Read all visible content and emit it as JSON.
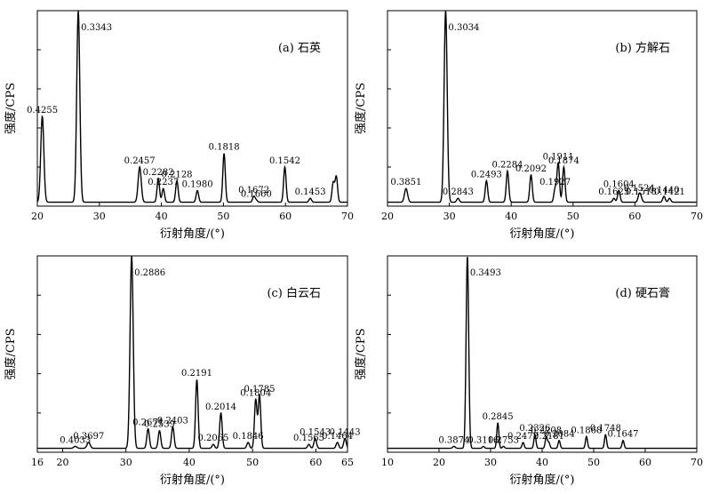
{
  "chart_data": [
    {
      "type": "line",
      "panel_label": "(a) 石英",
      "xlabel": "衍射角度/(°)",
      "ylabel": "强度/CPS",
      "xlim": [
        20,
        70
      ],
      "xticks": [
        20,
        30,
        40,
        50,
        60,
        70
      ],
      "ylim": [
        0,
        100
      ],
      "baseline": 2,
      "peaks": [
        {
          "x": 20.8,
          "y": 46,
          "w": 0.25,
          "label": "0.4255"
        },
        {
          "x": 26.6,
          "y": 100,
          "w": 0.25,
          "label": "0.3343"
        },
        {
          "x": 36.5,
          "y": 20,
          "w": 0.25,
          "label": "0.2457"
        },
        {
          "x": 39.5,
          "y": 14,
          "w": 0.2,
          "label": "0.2282"
        },
        {
          "x": 40.3,
          "y": 9,
          "w": 0.2,
          "label": "0.2237"
        },
        {
          "x": 42.5,
          "y": 13,
          "w": 0.2,
          "label": "0.2128"
        },
        {
          "x": 45.8,
          "y": 8,
          "w": 0.2,
          "label": "0.1980"
        },
        {
          "x": 50.1,
          "y": 27,
          "w": 0.2,
          "label": "0.1818"
        },
        {
          "x": 54.9,
          "y": 5,
          "w": 0.2,
          "label": "0.1672"
        },
        {
          "x": 55.3,
          "y": 3,
          "w": 0.2,
          "label": "0.1660"
        },
        {
          "x": 59.9,
          "y": 20,
          "w": 0.2,
          "label": "0.1542"
        },
        {
          "x": 64.0,
          "y": 4,
          "w": 0.2,
          "label": "0.1453"
        },
        {
          "x": 67.7,
          "y": 12,
          "w": 0.2,
          "label": ""
        },
        {
          "x": 68.2,
          "y": 15,
          "w": 0.2,
          "label": ""
        }
      ]
    },
    {
      "type": "line",
      "panel_label": "(b) 方解石",
      "xlabel": "衍射角度/(°)",
      "ylabel": "强度/CPS",
      "xlim": [
        20,
        70
      ],
      "xticks": [
        20,
        30,
        40,
        50,
        60,
        70
      ],
      "ylim": [
        0,
        100
      ],
      "baseline": 2,
      "peaks": [
        {
          "x": 23.0,
          "y": 9,
          "w": 0.25,
          "label": "0.3851"
        },
        {
          "x": 29.4,
          "y": 100,
          "w": 0.25,
          "label": "0.3034"
        },
        {
          "x": 31.4,
          "y": 4,
          "w": 0.2,
          "label": "0.2843"
        },
        {
          "x": 36.0,
          "y": 13,
          "w": 0.2,
          "label": "0.2493"
        },
        {
          "x": 39.4,
          "y": 18,
          "w": 0.2,
          "label": "0.2284"
        },
        {
          "x": 43.2,
          "y": 16,
          "w": 0.2,
          "label": "0.2092"
        },
        {
          "x": 47.1,
          "y": 9,
          "w": 0.2,
          "label": "0.1927"
        },
        {
          "x": 47.6,
          "y": 22,
          "w": 0.2,
          "label": "0.1911"
        },
        {
          "x": 48.5,
          "y": 20,
          "w": 0.2,
          "label": "0.1874"
        },
        {
          "x": 56.6,
          "y": 4,
          "w": 0.2,
          "label": "0.1625"
        },
        {
          "x": 57.4,
          "y": 8,
          "w": 0.2,
          "label": "0.1604"
        },
        {
          "x": 60.7,
          "y": 6,
          "w": 0.2,
          "label": "0.1524"
        },
        {
          "x": 61.0,
          "y": 4,
          "w": 0.2,
          "label": "0.1518"
        },
        {
          "x": 64.7,
          "y": 5,
          "w": 0.2,
          "label": "0.1440"
        },
        {
          "x": 65.6,
          "y": 4,
          "w": 0.2,
          "label": "0.1421"
        }
      ]
    },
    {
      "type": "line",
      "panel_label": "(c) 白云石",
      "xlabel": "衍射角度/(°)",
      "ylabel": "强度/CPS",
      "xlim": [
        16,
        65
      ],
      "xticks": [
        16,
        20,
        30,
        40,
        50,
        60,
        65
      ],
      "ylim": [
        0,
        100
      ],
      "baseline": 2,
      "peaks": [
        {
          "x": 22.0,
          "y": 3,
          "w": 0.25,
          "label": "0.4033"
        },
        {
          "x": 24.1,
          "y": 5,
          "w": 0.25,
          "label": "0.3697"
        },
        {
          "x": 30.9,
          "y": 100,
          "w": 0.25,
          "label": "0.2886"
        },
        {
          "x": 33.5,
          "y": 12,
          "w": 0.2,
          "label": "0.2671"
        },
        {
          "x": 35.3,
          "y": 11,
          "w": 0.2,
          "label": "0.2539"
        },
        {
          "x": 37.4,
          "y": 13,
          "w": 0.2,
          "label": "0.2403"
        },
        {
          "x": 41.2,
          "y": 37,
          "w": 0.2,
          "label": "0.2191"
        },
        {
          "x": 43.8,
          "y": 4,
          "w": 0.2,
          "label": "0.2065"
        },
        {
          "x": 45.0,
          "y": 20,
          "w": 0.2,
          "label": "0.2014"
        },
        {
          "x": 49.3,
          "y": 5,
          "w": 0.2,
          "label": "0.1846"
        },
        {
          "x": 50.5,
          "y": 27,
          "w": 0.2,
          "label": "0.1804"
        },
        {
          "x": 51.1,
          "y": 29,
          "w": 0.2,
          "label": "0.1785"
        },
        {
          "x": 58.9,
          "y": 4,
          "w": 0.2,
          "label": "0.1565"
        },
        {
          "x": 59.9,
          "y": 7,
          "w": 0.2,
          "label": "0.1543"
        },
        {
          "x": 63.4,
          "y": 5,
          "w": 0.2,
          "label": "0.1464"
        },
        {
          "x": 64.6,
          "y": 7,
          "w": 0.2,
          "label": "0.1443"
        }
      ]
    },
    {
      "type": "line",
      "panel_label": "(d) 硬石膏",
      "xlabel": "衍射角度/(°)",
      "ylabel": "强度/CPS",
      "xlim": [
        10,
        70
      ],
      "xticks": [
        10,
        20,
        30,
        40,
        50,
        60,
        70
      ],
      "ylim": [
        0,
        100
      ],
      "baseline": 2,
      "peaks": [
        {
          "x": 22.9,
          "y": 3,
          "w": 0.25,
          "label": "0.3874"
        },
        {
          "x": 25.5,
          "y": 100,
          "w": 0.25,
          "label": "0.3493"
        },
        {
          "x": 28.6,
          "y": 3,
          "w": 0.2,
          "label": "0.3116"
        },
        {
          "x": 31.4,
          "y": 15,
          "w": 0.2,
          "label": "0.2845"
        },
        {
          "x": 32.5,
          "y": 3,
          "w": 0.2,
          "label": "0.2753"
        },
        {
          "x": 36.3,
          "y": 5,
          "w": 0.2,
          "label": "0.2472"
        },
        {
          "x": 38.6,
          "y": 9,
          "w": 0.2,
          "label": "0.2326"
        },
        {
          "x": 40.8,
          "y": 8,
          "w": 0.2,
          "label": "0.2208"
        },
        {
          "x": 41.3,
          "y": 5,
          "w": 0.2,
          "label": "0.2181"
        },
        {
          "x": 43.3,
          "y": 6,
          "w": 0.2,
          "label": "0.2084"
        },
        {
          "x": 48.6,
          "y": 8,
          "w": 0.2,
          "label": "0.1868"
        },
        {
          "x": 52.3,
          "y": 9,
          "w": 0.2,
          "label": "0.1748"
        },
        {
          "x": 55.7,
          "y": 6,
          "w": 0.2,
          "label": "0.1647"
        },
        {
          "x": 58.5,
          "y": 2,
          "w": 0.2,
          "label": ""
        },
        {
          "x": 60.7,
          "y": 2,
          "w": 0.2,
          "label": ""
        },
        {
          "x": 65.5,
          "y": 2,
          "w": 0.2,
          "label": ""
        }
      ]
    }
  ]
}
